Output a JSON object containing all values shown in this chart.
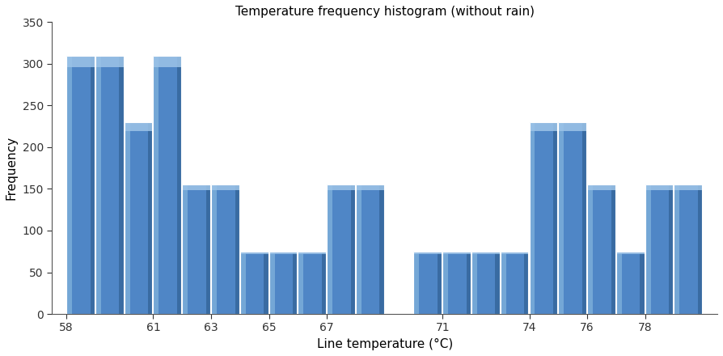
{
  "title": "Temperature frequency histogram (without rain)",
  "xlabel": "Line temperature (°C)",
  "ylabel": "Frequency",
  "bar_left_edges": [
    58,
    59,
    60,
    61,
    62,
    63,
    64,
    65,
    66,
    67,
    68,
    70,
    71,
    72,
    73,
    74,
    75,
    76,
    77,
    78,
    79
  ],
  "bar_heights": [
    310,
    310,
    230,
    310,
    155,
    155,
    75,
    75,
    75,
    155,
    155,
    75,
    75,
    75,
    75,
    230,
    230,
    155,
    75,
    155,
    155
  ],
  "bar_width": 0.97,
  "bar_color_main": "#4F86C6",
  "bar_color_light": "#7BADD9",
  "bar_color_dark": "#2B5A8A",
  "bar_color_top": "#9DC4E8",
  "xlim": [
    57.5,
    80.5
  ],
  "ylim": [
    0,
    350
  ],
  "yticks": [
    0,
    50,
    100,
    150,
    200,
    250,
    300,
    350
  ],
  "xtick_positions": [
    58,
    61,
    63,
    65,
    67,
    71,
    74,
    76,
    78
  ],
  "xtick_labels": [
    "58",
    "61",
    "63",
    "65",
    "67",
    "71",
    "74",
    "76",
    "78"
  ],
  "title_fontsize": 11,
  "axis_label_fontsize": 11,
  "tick_fontsize": 10,
  "background_color": "#FFFFFF",
  "figsize": [
    8.94,
    4.4
  ],
  "dpi": 100
}
